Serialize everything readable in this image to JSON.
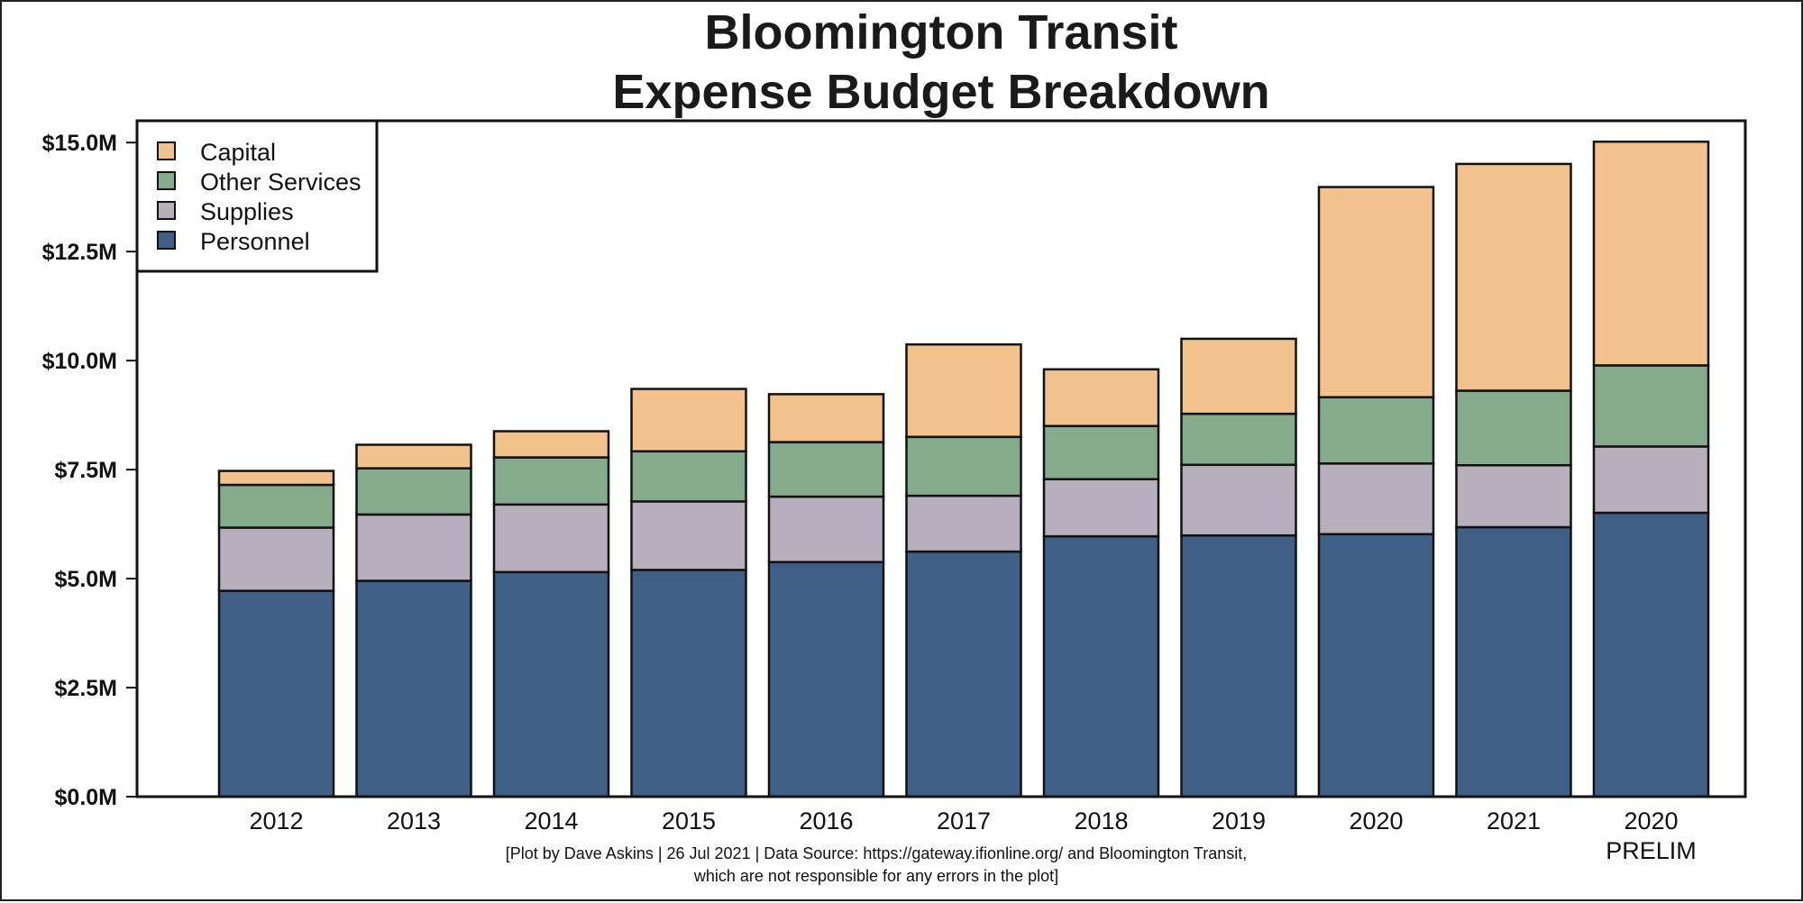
{
  "chart_data": {
    "type": "bar",
    "stacked": true,
    "title_lines": [
      "Bloomington Transit",
      "Expense Budget Breakdown"
    ],
    "categories": [
      [
        "2012"
      ],
      [
        "2013"
      ],
      [
        "2014"
      ],
      [
        "2015"
      ],
      [
        "2016"
      ],
      [
        "2017"
      ],
      [
        "2018"
      ],
      [
        "2019"
      ],
      [
        "2020"
      ],
      [
        "2021"
      ],
      [
        "2020",
        "PRELIM"
      ]
    ],
    "series": [
      {
        "name": "Personnel",
        "color": "#405f87",
        "values": [
          4.72,
          4.95,
          5.15,
          5.2,
          5.38,
          5.62,
          5.97,
          5.99,
          6.02,
          6.18,
          6.51
        ]
      },
      {
        "name": "Supplies",
        "color": "#b8afbd",
        "values": [
          1.45,
          1.52,
          1.55,
          1.57,
          1.5,
          1.28,
          1.31,
          1.62,
          1.62,
          1.42,
          1.52
        ]
      },
      {
        "name": "Other Services",
        "color": "#85aa8c",
        "values": [
          0.98,
          1.06,
          1.08,
          1.15,
          1.25,
          1.35,
          1.22,
          1.17,
          1.52,
          1.71,
          1.86
        ]
      },
      {
        "name": "Capital",
        "color": "#f1c28c",
        "values": [
          0.32,
          0.54,
          0.6,
          1.43,
          1.1,
          2.12,
          1.3,
          1.72,
          4.82,
          5.2,
          5.13
        ]
      }
    ],
    "legend_order": [
      "Capital",
      "Other Services",
      "Supplies",
      "Personnel"
    ],
    "legend_position": "top-left",
    "ylim": [
      0,
      15.5
    ],
    "yticks": [
      0,
      2.5,
      5,
      7.5,
      10,
      12.5,
      15
    ],
    "ytick_labels": [
      "$0.0M",
      "$2.5M",
      "$5.0M",
      "$7.5M",
      "$10.0M",
      "$12.5M",
      "$15.0M"
    ],
    "xlabel": "",
    "ylabel": "",
    "grid": false
  },
  "caption": {
    "line1": "[Plot by Dave Askins | 26 Jul 2021 | Data Source: https://gateway.ifionline.org/ and Bloomington Transit,",
    "line2": "which are not responsible for any errors in the plot]"
  }
}
